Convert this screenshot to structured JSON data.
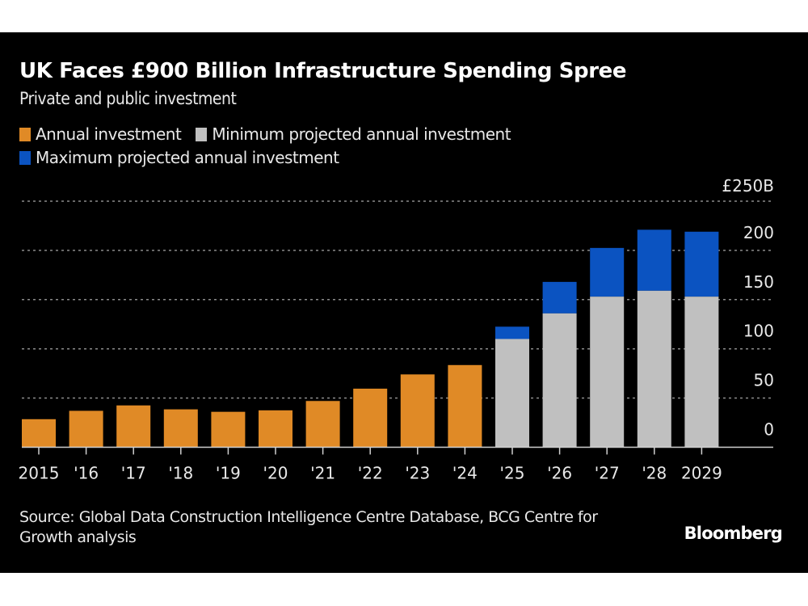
{
  "header": {
    "title": "UK Faces £900 Billion Infrastructure Spending Spree",
    "subtitle": "Private and public investment"
  },
  "legend": [
    {
      "label": "Annual investment",
      "color": "#e08a26"
    },
    {
      "label": "Minimum projected annual investment",
      "color": "#c0c0c0"
    },
    {
      "label": "Maximum projected annual investment",
      "color": "#0b53c1"
    }
  ],
  "footer": {
    "source": "Source: Global Data Construction Intelligence Centre Database, BCG Centre for Growth analysis",
    "brand": "Bloomberg"
  },
  "chart_data": {
    "type": "bar",
    "stacked": true,
    "title": "UK Faces £900 Billion Infrastructure Spending Spree",
    "subtitle": "Private and public investment",
    "xlabel": "",
    "ylabel": "",
    "y_unit_label": "£250B",
    "ylim": [
      0,
      250
    ],
    "y_ticks": [
      0,
      50,
      100,
      150,
      200,
      250
    ],
    "y_tick_labels": [
      "0",
      "50",
      "100",
      "150",
      "200",
      "£250B"
    ],
    "y_axis_position": "right",
    "grid": true,
    "legend_position": "top-left",
    "categories": [
      "2015",
      "'16",
      "'17",
      "'18",
      "'19",
      "'20",
      "'21",
      "'22",
      "'23",
      "'24",
      "'25",
      "'26",
      "'27",
      "'28",
      "2029"
    ],
    "series": [
      {
        "name": "Annual investment",
        "color": "#e08a26",
        "values": [
          28.5,
          37,
          42.5,
          38.5,
          36,
          37.5,
          47,
          59.5,
          74,
          83.5,
          null,
          null,
          null,
          null,
          null
        ]
      },
      {
        "name": "Minimum projected annual investment",
        "color": "#c0c0c0",
        "values": [
          null,
          null,
          null,
          null,
          null,
          null,
          null,
          null,
          null,
          null,
          110,
          136,
          153,
          159,
          153
        ]
      },
      {
        "name": "Maximum projected annual investment",
        "color": "#0b53c1",
        "values": [
          null,
          null,
          null,
          null,
          null,
          null,
          null,
          null,
          null,
          null,
          122.5,
          168,
          202.5,
          221,
          219
        ]
      }
    ]
  }
}
